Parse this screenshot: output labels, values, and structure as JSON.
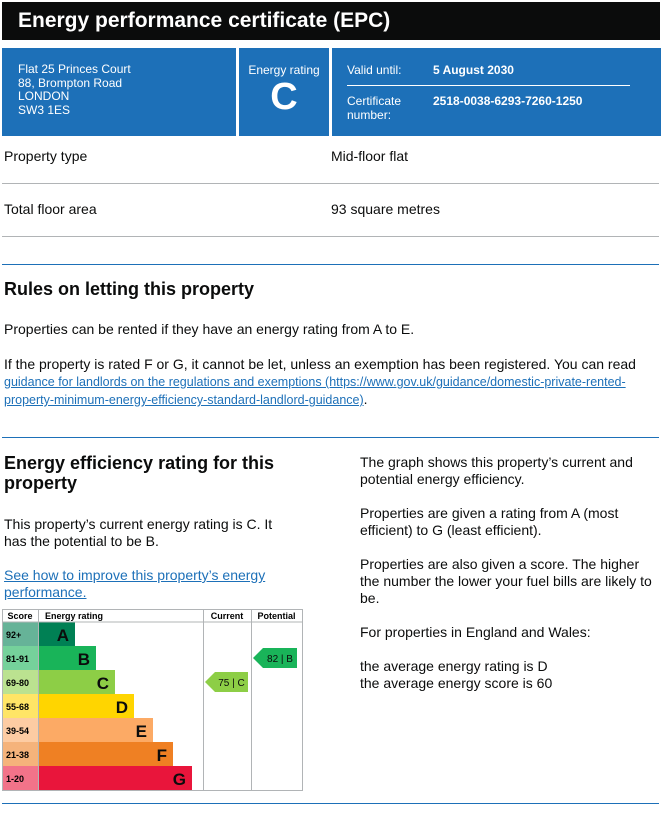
{
  "header": {
    "title": "Energy performance certificate (EPC)"
  },
  "summary": {
    "address": [
      "Flat 25 Princes Court",
      "88, Brompton Road",
      "LONDON",
      "SW3 1ES"
    ],
    "rating_label": "Energy rating",
    "rating": "C",
    "valid_until_label": "Valid until:",
    "valid_until": "5 August 2030",
    "certificate_number_label": "Certificate number:",
    "certificate_number": "2518-0038-6293-7260-1250"
  },
  "details": [
    {
      "label": "Property type",
      "value": "Mid-floor flat"
    },
    {
      "label": "Total floor area",
      "value": "93 square metres"
    }
  ],
  "rules": {
    "heading": "Rules on letting this property",
    "paragraph": "Properties can be rented if they have an energy rating from A to E.",
    "text_before_link": "If the property is rated F or G, it cannot be let, unless an exemption has been registered. You can read",
    "link": "guidance for landlords on the regulations and exemptions (https://www.gov.uk/guidance/domestic-private-rented-property-minimum-energy-efficiency-standard-landlord-guidance)",
    "text_after_link": "."
  },
  "efficiency": {
    "heading": "Energy efficiency rating for this property",
    "current_text": "This property’s current energy rating is C. It has the potential to be B.",
    "link": "See how to improve this property’s energy performance.",
    "side_paragraphs": [
      "The graph shows this property’s current and potential energy efficiency.",
      "Properties are given a rating from A (most efficient) to G (least efficient).",
      "Properties are also given a score. The higher the number the lower your fuel bills are likely to be.",
      "For properties in England and Wales:"
    ],
    "averages": [
      "the average energy rating is D",
      "the average energy score is 60"
    ],
    "graph": {
      "headers": [
        "Score",
        "Energy rating",
        "Current",
        "Potential"
      ],
      "bands": [
        {
          "score": "92+",
          "letter": "A"
        },
        {
          "score": "81-91",
          "letter": "B"
        },
        {
          "score": "69-80",
          "letter": "C"
        },
        {
          "score": "55-68",
          "letter": "D"
        },
        {
          "score": "39-54",
          "letter": "E"
        },
        {
          "score": "21-38",
          "letter": "F"
        },
        {
          "score": "1-20",
          "letter": "G"
        }
      ],
      "current": "75 | C",
      "potential": "82 | B"
    }
  }
}
